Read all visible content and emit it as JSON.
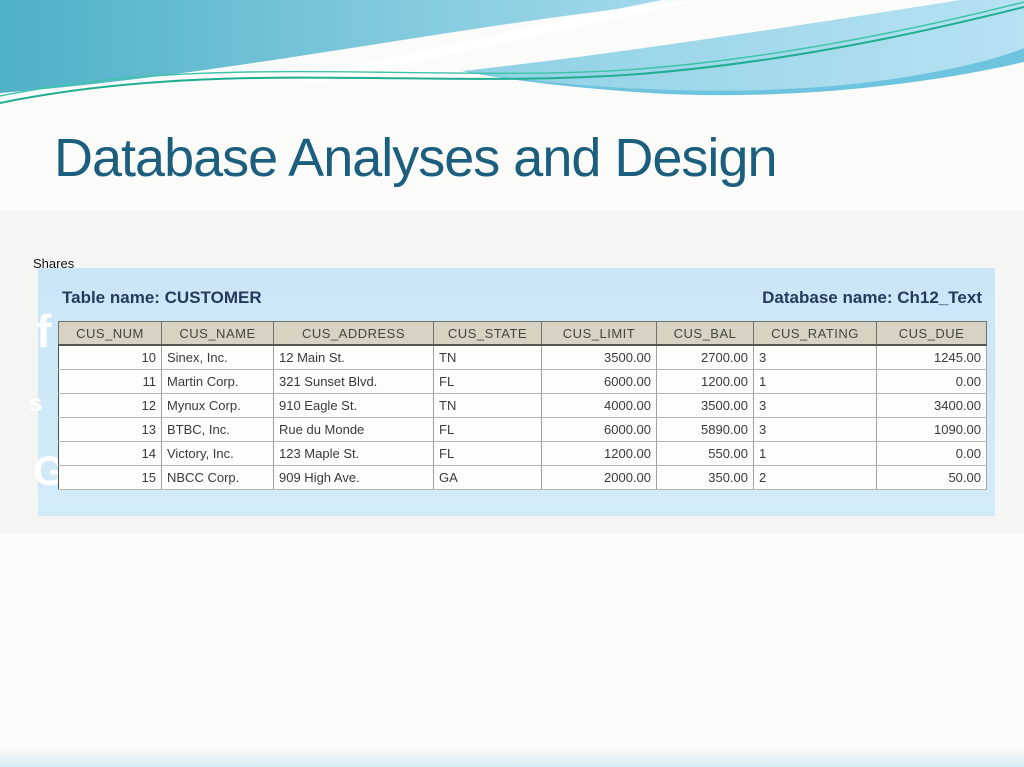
{
  "slide": {
    "title": "Database Analyses and Design",
    "shares_label": "Shares",
    "ghost_fragments": {
      "top": "f",
      "middle": "s",
      "bottom": "G"
    }
  },
  "figure": {
    "table_name_label": "Table name: CUSTOMER",
    "database_name_label": "Database name: Ch12_Text",
    "columns": [
      "CUS_NUM",
      "CUS_NAME",
      "CUS_ADDRESS",
      "CUS_STATE",
      "CUS_LIMIT",
      "CUS_BAL",
      "CUS_RATING",
      "CUS_DUE"
    ],
    "rows": [
      [
        "10",
        "Sinex, Inc.",
        "12 Main St.",
        "TN",
        "3500.00",
        "2700.00",
        "3",
        "1245.00"
      ],
      [
        "11",
        "Martin Corp.",
        "321 Sunset Blvd.",
        "FL",
        "6000.00",
        "1200.00",
        "1",
        "0.00"
      ],
      [
        "12",
        "Mynux Corp.",
        "910 Eagle St.",
        "TN",
        "4000.00",
        "3500.00",
        "3",
        "3400.00"
      ],
      [
        "13",
        "BTBC, Inc.",
        "Rue du Monde",
        "FL",
        "6000.00",
        "5890.00",
        "3",
        "1090.00"
      ],
      [
        "14",
        "Victory, Inc.",
        "123 Maple St.",
        "FL",
        "1200.00",
        "550.00",
        "1",
        "0.00"
      ],
      [
        "15",
        "NBCC Corp.",
        "909 High Ave.",
        "GA",
        "2000.00",
        "350.00",
        "2",
        "50.00"
      ]
    ]
  },
  "colors": {
    "title_text": "#1b5e7d",
    "caption_text": "#263a5d",
    "panel_background": "#cde8f8",
    "table_header_background": "#d8d2c3",
    "wave_teal_dark": "#4fb0c6",
    "wave_blue_light": "#a8dbee",
    "wave_accent_band": "#6ec3de",
    "wave_green_line": "#1fae92"
  }
}
